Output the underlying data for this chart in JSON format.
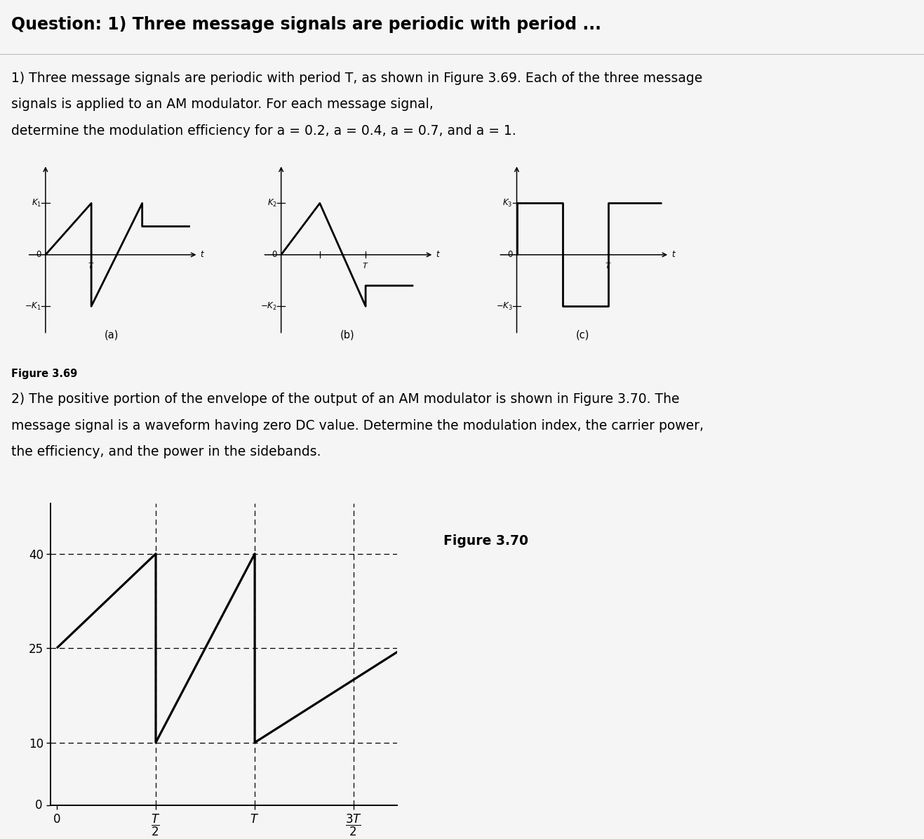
{
  "title": "Question: 1) Three message signals are periodic with period ...",
  "title_fontsize": 17,
  "title_fontweight": "bold",
  "background_color": "#f5f5f5",
  "para1_lines": [
    "1) Three message signals are periodic with period T, as shown in Figure 3.69. Each of the three message",
    "signals is applied to an AM modulator. For each message signal,",
    "determine the modulation efficiency for a = 0.2, a = 0.4, a = 0.7, and a = 1."
  ],
  "para2_lines": [
    "2) The positive portion of the envelope of the output of an AM modulator is shown in Figure 3.70. The",
    "message signal is a waveform having zero DC value. Determine the modulation index, the carrier power,",
    "the efficiency, and the power in the sidebands."
  ],
  "fig369_caption": "Figure 3.69",
  "fig370_caption": "Figure 3.70",
  "fig370_yticks": [
    0,
    10,
    25,
    40
  ],
  "text_fontsize": 13.5,
  "signal_linewidth": 2.0,
  "axes_linewidth": 1.2
}
